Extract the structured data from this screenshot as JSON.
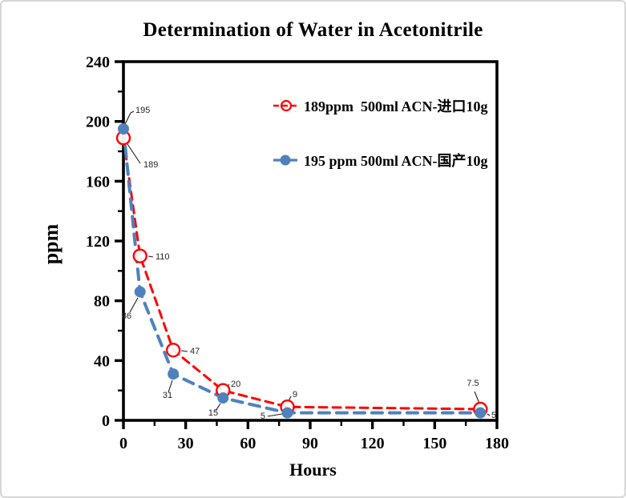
{
  "colors": {
    "red": "#ff0000",
    "blue": "#4f81bd",
    "axis": "#000000",
    "point_label": "#262626",
    "card_border": "#d6d6d6"
  },
  "chart_data": {
    "type": "line",
    "title": "Determination of Water in Acetonitrile",
    "xlabel": "Hours",
    "ylabel": "ppm",
    "xlim": [
      0,
      180
    ],
    "ylim": [
      0,
      240
    ],
    "x_major_ticks": [
      0,
      30,
      60,
      90,
      120,
      150,
      180
    ],
    "x_minor_step": 15,
    "y_major_ticks": [
      0,
      40,
      80,
      120,
      160,
      200,
      240
    ],
    "y_minor_step": 20,
    "grid": false,
    "legend_position": "inside upper right",
    "x": [
      0,
      8,
      24,
      48,
      79,
      172
    ],
    "series": [
      {
        "name": "189ppm  500ml ACN-进口10g",
        "color": "#ff0000",
        "line_style": "dashed",
        "marker": "open-circle",
        "values": [
          189,
          110,
          47,
          20,
          9,
          7.5
        ],
        "point_labels": [
          "189",
          "110",
          "47",
          "20",
          "9",
          "7.5"
        ]
      },
      {
        "name": "195 ppm 500ml ACN-国产10g",
        "color": "#4f81bd",
        "line_style": "dashed",
        "marker": "filled-circle",
        "values": [
          195,
          86,
          31,
          15,
          5,
          5
        ],
        "point_labels": [
          "195",
          "86",
          "31",
          "15",
          "5",
          "5"
        ]
      }
    ]
  }
}
